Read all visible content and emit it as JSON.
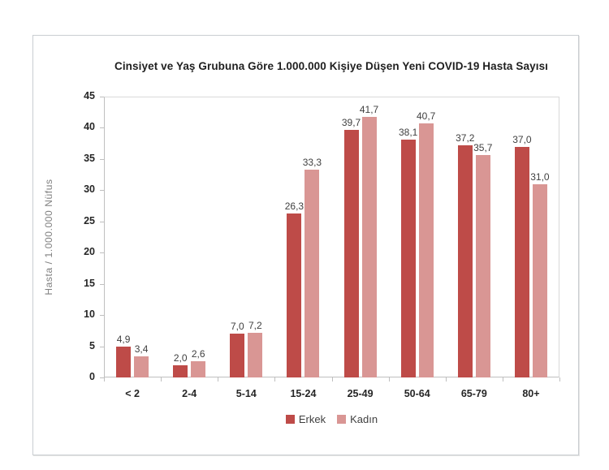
{
  "chart_data": {
    "type": "bar",
    "title": "Cinsiyet ve Yaş Grubuna Göre 1.000.000 Kişiye Düşen Yeni COVID-19 Hasta Sayısı",
    "xlabel": "",
    "ylabel": "Hasta / 1.000.000 Nüfus",
    "categories": [
      "< 2",
      "2-4",
      "5-14",
      "15-24",
      "25-49",
      "50-64",
      "65-79",
      "80+"
    ],
    "series": [
      {
        "name": "Erkek",
        "color": "#be4b48",
        "values": [
          4.9,
          2.0,
          7.0,
          26.3,
          39.7,
          38.1,
          37.2,
          37.0
        ],
        "labels": [
          "4,9",
          "2,0",
          "7,0",
          "26,3",
          "39,7",
          "38,1",
          "37,2",
          "37,0"
        ]
      },
      {
        "name": "Kadın",
        "color": "#d99694",
        "values": [
          3.4,
          2.6,
          7.2,
          33.3,
          41.7,
          40.7,
          35.7,
          31.0
        ],
        "labels": [
          "3,4",
          "2,6",
          "7,2",
          "33,3",
          "41,7",
          "40,7",
          "35,7",
          "31,0"
        ]
      }
    ],
    "ylim": [
      0,
      45
    ],
    "ytick_step": 5,
    "yticks": [
      "0",
      "5",
      "10",
      "15",
      "20",
      "25",
      "30",
      "35",
      "40",
      "45"
    ],
    "grid": false,
    "legend_position": "bottom",
    "decimal_separator": ","
  }
}
